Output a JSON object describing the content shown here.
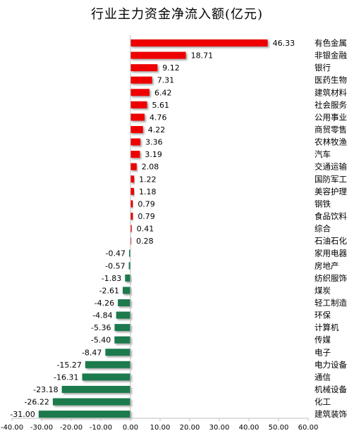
{
  "chart_data": {
    "type": "bar",
    "orientation": "horizontal",
    "title": "行业主力资金净流入额(亿元)",
    "xlabel": "",
    "ylabel": "",
    "xlim": [
      -40,
      60
    ],
    "xticks": [
      -40,
      -30,
      -20,
      -10,
      0,
      10,
      20,
      30,
      40,
      50,
      60
    ],
    "xtick_labels": [
      "-40.00",
      "-30.00",
      "-20.00",
      "-10.00",
      "0.00",
      "10.00",
      "20.00",
      "30.00",
      "40.00",
      "50.00",
      "60.00"
    ],
    "grid": false,
    "legend": "none",
    "colors": {
      "positive": "#ee0000",
      "negative": "#1f7a4d"
    },
    "categories": [
      "有色金属",
      "非银金融",
      "银行",
      "医药生物",
      "建筑材料",
      "社会服务",
      "公用事业",
      "商贸零售",
      "农林牧渔",
      "汽车",
      "交通运输",
      "国防军工",
      "美容护理",
      "钢铁",
      "食品饮料",
      "综合",
      "石油石化",
      "家用电器",
      "房地产",
      "纺织服饰",
      "煤炭",
      "轻工制造",
      "环保",
      "计算机",
      "传媒",
      "电子",
      "电力设备",
      "通信",
      "机械设备",
      "化工",
      "建筑装饰"
    ],
    "values": [
      46.33,
      18.71,
      9.12,
      7.31,
      6.42,
      5.61,
      4.76,
      4.22,
      3.36,
      3.19,
      2.08,
      1.22,
      1.18,
      0.79,
      0.79,
      0.41,
      0.28,
      -0.47,
      -0.57,
      -1.83,
      -2.61,
      -4.26,
      -4.84,
      -5.36,
      -5.4,
      -8.47,
      -15.27,
      -16.31,
      -23.18,
      -26.22,
      -31.0
    ],
    "value_labels": [
      "46.33",
      "18.71",
      "9.12",
      "7.31",
      "6.42",
      "5.61",
      "4.76",
      "4.22",
      "3.36",
      "3.19",
      "2.08",
      "1.22",
      "1.18",
      "0.79",
      "0.79",
      "0.41",
      "0.28",
      "-0.47",
      "-0.57",
      "-1.83",
      "-2.61",
      "-4.26",
      "-4.84",
      "-5.36",
      "-5.40",
      "-8.47",
      "-15.27",
      "-16.31",
      "-23.18",
      "-26.22",
      "-31.00"
    ]
  }
}
